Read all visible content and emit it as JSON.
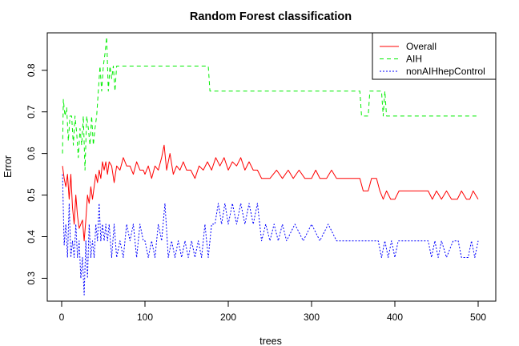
{
  "chart_data": {
    "type": "line",
    "title": "Random Forest classification",
    "xlabel": "trees",
    "ylabel": "Error",
    "xlim": [
      0,
      500
    ],
    "ylim": [
      0.245,
      0.89
    ],
    "xticks": [
      0,
      100,
      200,
      300,
      400,
      500
    ],
    "yticks": [
      0.3,
      0.4,
      0.5,
      0.6,
      0.7,
      0.8
    ],
    "x_tick_labels": [
      "0",
      "100",
      "200",
      "300",
      "400",
      "500"
    ],
    "y_tick_labels": [
      "0.3",
      "0.4",
      "0.5",
      "0.6",
      "0.7",
      "0.8"
    ],
    "grid": false,
    "legend_position": "top-right",
    "series": [
      {
        "name": "Overall",
        "color": "#ff0000",
        "dash": "solid",
        "points": [
          [
            1,
            0.57
          ],
          [
            3,
            0.54
          ],
          [
            5,
            0.52
          ],
          [
            7,
            0.55
          ],
          [
            9,
            0.49
          ],
          [
            11,
            0.55
          ],
          [
            13,
            0.47
          ],
          [
            15,
            0.43
          ],
          [
            17,
            0.5
          ],
          [
            19,
            0.45
          ],
          [
            21,
            0.42
          ],
          [
            23,
            0.43
          ],
          [
            25,
            0.44
          ],
          [
            27,
            0.39
          ],
          [
            29,
            0.44
          ],
          [
            31,
            0.5
          ],
          [
            33,
            0.48
          ],
          [
            35,
            0.52
          ],
          [
            37,
            0.49
          ],
          [
            39,
            0.52
          ],
          [
            41,
            0.55
          ],
          [
            43,
            0.53
          ],
          [
            45,
            0.56
          ],
          [
            47,
            0.54
          ],
          [
            49,
            0.58
          ],
          [
            51,
            0.56
          ],
          [
            53,
            0.58
          ],
          [
            55,
            0.55
          ],
          [
            57,
            0.58
          ],
          [
            60,
            0.57
          ],
          [
            63,
            0.53
          ],
          [
            66,
            0.57
          ],
          [
            70,
            0.56
          ],
          [
            74,
            0.59
          ],
          [
            78,
            0.57
          ],
          [
            82,
            0.57
          ],
          [
            86,
            0.55
          ],
          [
            90,
            0.58
          ],
          [
            94,
            0.56
          ],
          [
            98,
            0.56
          ],
          [
            100,
            0.55
          ],
          [
            104,
            0.57
          ],
          [
            108,
            0.54
          ],
          [
            112,
            0.57
          ],
          [
            116,
            0.56
          ],
          [
            120,
            0.59
          ],
          [
            123,
            0.62
          ],
          [
            126,
            0.56
          ],
          [
            130,
            0.6
          ],
          [
            134,
            0.55
          ],
          [
            138,
            0.57
          ],
          [
            142,
            0.56
          ],
          [
            146,
            0.58
          ],
          [
            150,
            0.56
          ],
          [
            155,
            0.56
          ],
          [
            160,
            0.54
          ],
          [
            165,
            0.57
          ],
          [
            170,
            0.56
          ],
          [
            175,
            0.58
          ],
          [
            180,
            0.56
          ],
          [
            185,
            0.59
          ],
          [
            190,
            0.57
          ],
          [
            195,
            0.59
          ],
          [
            200,
            0.56
          ],
          [
            205,
            0.58
          ],
          [
            210,
            0.57
          ],
          [
            215,
            0.59
          ],
          [
            220,
            0.56
          ],
          [
            225,
            0.58
          ],
          [
            230,
            0.56
          ],
          [
            235,
            0.56
          ],
          [
            240,
            0.54
          ],
          [
            250,
            0.54
          ],
          [
            258,
            0.56
          ],
          [
            265,
            0.54
          ],
          [
            272,
            0.56
          ],
          [
            278,
            0.54
          ],
          [
            285,
            0.56
          ],
          [
            292,
            0.54
          ],
          [
            300,
            0.54
          ],
          [
            305,
            0.56
          ],
          [
            310,
            0.54
          ],
          [
            318,
            0.54
          ],
          [
            324,
            0.56
          ],
          [
            330,
            0.54
          ],
          [
            340,
            0.54
          ],
          [
            350,
            0.54
          ],
          [
            358,
            0.54
          ],
          [
            362,
            0.51
          ],
          [
            368,
            0.51
          ],
          [
            372,
            0.54
          ],
          [
            378,
            0.54
          ],
          [
            382,
            0.51
          ],
          [
            386,
            0.49
          ],
          [
            390,
            0.51
          ],
          [
            395,
            0.49
          ],
          [
            400,
            0.49
          ],
          [
            405,
            0.51
          ],
          [
            420,
            0.51
          ],
          [
            440,
            0.51
          ],
          [
            445,
            0.49
          ],
          [
            450,
            0.51
          ],
          [
            456,
            0.49
          ],
          [
            462,
            0.51
          ],
          [
            468,
            0.49
          ],
          [
            475,
            0.49
          ],
          [
            480,
            0.51
          ],
          [
            486,
            0.49
          ],
          [
            490,
            0.49
          ],
          [
            494,
            0.51
          ],
          [
            500,
            0.49
          ]
        ]
      },
      {
        "name": "AIH",
        "color": "#00ee00",
        "dash": "5,4",
        "points": [
          [
            1,
            0.6
          ],
          [
            2,
            0.73
          ],
          [
            4,
            0.69
          ],
          [
            6,
            0.71
          ],
          [
            8,
            0.63
          ],
          [
            10,
            0.69
          ],
          [
            12,
            0.69
          ],
          [
            14,
            0.62
          ],
          [
            16,
            0.69
          ],
          [
            18,
            0.65
          ],
          [
            20,
            0.59
          ],
          [
            22,
            0.66
          ],
          [
            24,
            0.62
          ],
          [
            26,
            0.69
          ],
          [
            28,
            0.56
          ],
          [
            30,
            0.69
          ],
          [
            32,
            0.66
          ],
          [
            34,
            0.62
          ],
          [
            36,
            0.69
          ],
          [
            38,
            0.62
          ],
          [
            40,
            0.66
          ],
          [
            42,
            0.69
          ],
          [
            44,
            0.75
          ],
          [
            46,
            0.81
          ],
          [
            48,
            0.75
          ],
          [
            50,
            0.81
          ],
          [
            52,
            0.84
          ],
          [
            54,
            0.88
          ],
          [
            56,
            0.75
          ],
          [
            58,
            0.81
          ],
          [
            60,
            0.78
          ],
          [
            62,
            0.81
          ],
          [
            64,
            0.75
          ],
          [
            66,
            0.81
          ],
          [
            70,
            0.81
          ],
          [
            100,
            0.81
          ],
          [
            150,
            0.81
          ],
          [
            176,
            0.81
          ],
          [
            178,
            0.75
          ],
          [
            200,
            0.75
          ],
          [
            250,
            0.75
          ],
          [
            300,
            0.75
          ],
          [
            350,
            0.75
          ],
          [
            358,
            0.75
          ],
          [
            360,
            0.69
          ],
          [
            368,
            0.69
          ],
          [
            370,
            0.75
          ],
          [
            384,
            0.75
          ],
          [
            386,
            0.69
          ],
          [
            388,
            0.75
          ],
          [
            390,
            0.69
          ],
          [
            420,
            0.69
          ],
          [
            460,
            0.69
          ],
          [
            500,
            0.69
          ]
        ]
      },
      {
        "name": "nonAIHhepControl",
        "color": "#0000ff",
        "dash": "2,2",
        "points": [
          [
            1,
            0.55
          ],
          [
            3,
            0.38
          ],
          [
            5,
            0.43
          ],
          [
            7,
            0.35
          ],
          [
            9,
            0.48
          ],
          [
            11,
            0.35
          ],
          [
            13,
            0.39
          ],
          [
            15,
            0.35
          ],
          [
            17,
            0.43
          ],
          [
            19,
            0.35
          ],
          [
            21,
            0.39
          ],
          [
            23,
            0.3
          ],
          [
            25,
            0.35
          ],
          [
            27,
            0.26
          ],
          [
            29,
            0.39
          ],
          [
            31,
            0.3
          ],
          [
            33,
            0.43
          ],
          [
            35,
            0.35
          ],
          [
            37,
            0.39
          ],
          [
            39,
            0.35
          ],
          [
            41,
            0.43
          ],
          [
            43,
            0.39
          ],
          [
            45,
            0.48
          ],
          [
            47,
            0.39
          ],
          [
            49,
            0.43
          ],
          [
            51,
            0.39
          ],
          [
            53,
            0.43
          ],
          [
            55,
            0.39
          ],
          [
            57,
            0.43
          ],
          [
            60,
            0.35
          ],
          [
            63,
            0.43
          ],
          [
            66,
            0.35
          ],
          [
            70,
            0.39
          ],
          [
            74,
            0.35
          ],
          [
            78,
            0.43
          ],
          [
            82,
            0.39
          ],
          [
            86,
            0.43
          ],
          [
            90,
            0.35
          ],
          [
            94,
            0.43
          ],
          [
            98,
            0.39
          ],
          [
            100,
            0.39
          ],
          [
            104,
            0.35
          ],
          [
            108,
            0.39
          ],
          [
            112,
            0.35
          ],
          [
            116,
            0.43
          ],
          [
            120,
            0.39
          ],
          [
            124,
            0.48
          ],
          [
            128,
            0.35
          ],
          [
            132,
            0.39
          ],
          [
            136,
            0.35
          ],
          [
            140,
            0.39
          ],
          [
            144,
            0.35
          ],
          [
            148,
            0.39
          ],
          [
            152,
            0.35
          ],
          [
            156,
            0.39
          ],
          [
            160,
            0.35
          ],
          [
            164,
            0.39
          ],
          [
            168,
            0.35
          ],
          [
            172,
            0.43
          ],
          [
            176,
            0.35
          ],
          [
            180,
            0.43
          ],
          [
            184,
            0.43
          ],
          [
            188,
            0.48
          ],
          [
            192,
            0.43
          ],
          [
            196,
            0.48
          ],
          [
            200,
            0.43
          ],
          [
            205,
            0.48
          ],
          [
            210,
            0.43
          ],
          [
            215,
            0.48
          ],
          [
            220,
            0.43
          ],
          [
            225,
            0.48
          ],
          [
            230,
            0.43
          ],
          [
            235,
            0.48
          ],
          [
            240,
            0.39
          ],
          [
            245,
            0.43
          ],
          [
            250,
            0.39
          ],
          [
            255,
            0.43
          ],
          [
            260,
            0.39
          ],
          [
            265,
            0.43
          ],
          [
            270,
            0.39
          ],
          [
            280,
            0.43
          ],
          [
            290,
            0.39
          ],
          [
            300,
            0.43
          ],
          [
            310,
            0.39
          ],
          [
            320,
            0.43
          ],
          [
            330,
            0.39
          ],
          [
            340,
            0.39
          ],
          [
            360,
            0.39
          ],
          [
            380,
            0.39
          ],
          [
            384,
            0.35
          ],
          [
            388,
            0.39
          ],
          [
            392,
            0.35
          ],
          [
            396,
            0.39
          ],
          [
            400,
            0.35
          ],
          [
            404,
            0.39
          ],
          [
            410,
            0.39
          ],
          [
            430,
            0.39
          ],
          [
            440,
            0.39
          ],
          [
            444,
            0.35
          ],
          [
            448,
            0.39
          ],
          [
            452,
            0.35
          ],
          [
            456,
            0.39
          ],
          [
            462,
            0.35
          ],
          [
            470,
            0.39
          ],
          [
            476,
            0.39
          ],
          [
            480,
            0.35
          ],
          [
            488,
            0.35
          ],
          [
            492,
            0.39
          ],
          [
            496,
            0.35
          ],
          [
            500,
            0.39
          ]
        ]
      }
    ]
  }
}
